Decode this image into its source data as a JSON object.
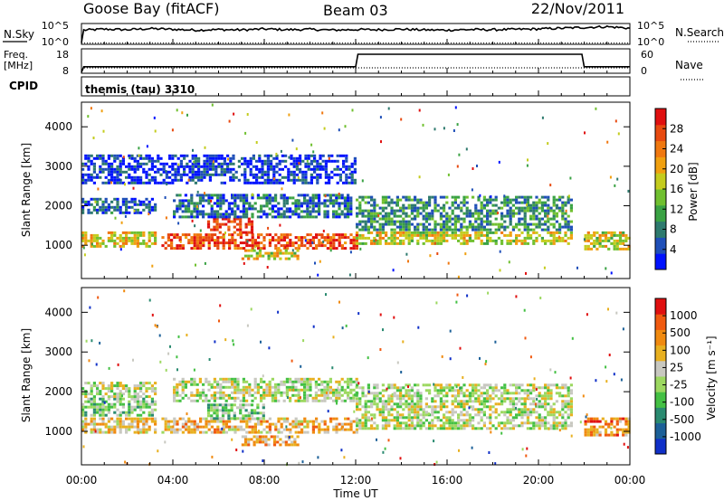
{
  "header": {
    "station": "Goose Bay (fitACF)",
    "beam": "Beam 03",
    "date": "22/Nov/2011"
  },
  "chart_data": [
    {
      "panel": "noise",
      "type": "line",
      "left_label": "N.Sky",
      "left_ticks": [
        "10^5",
        "10^0"
      ],
      "right_label": "N.Search",
      "right_ticks": [
        "10^5",
        "10^0"
      ],
      "series": [
        {
          "style": "solid",
          "x_hours": [
            0,
            0.1,
            1,
            2,
            3,
            4,
            5,
            6,
            7,
            8,
            9,
            10,
            11,
            12,
            13,
            14,
            15,
            16,
            17,
            18,
            19,
            20,
            21,
            22,
            23,
            24
          ],
          "level": [
            0.05,
            0.7,
            0.75,
            0.72,
            0.78,
            0.74,
            0.7,
            0.73,
            0.71,
            0.76,
            0.72,
            0.74,
            0.7,
            0.73,
            0.72,
            0.75,
            0.71,
            0.7,
            0.73,
            0.72,
            0.74,
            0.76,
            0.8,
            0.84,
            0.88,
            0.8
          ]
        },
        {
          "style": "dotted",
          "x_hours": [
            0,
            24
          ],
          "level": [
            0.02,
            0.02
          ]
        }
      ]
    },
    {
      "panel": "frequency",
      "type": "line",
      "left_label": "Freq.",
      "left_units": "[MHz]",
      "left_ticks": [
        "18",
        "8"
      ],
      "ylim": [
        8,
        18
      ],
      "right_label": "Nave",
      "right_ticks": [
        "60",
        "0"
      ],
      "y2lim": [
        0,
        60
      ],
      "series": [
        {
          "style": "solid",
          "x_hours": [
            0,
            0.1,
            12,
            12.1,
            21.9,
            22,
            24
          ],
          "values": [
            8,
            10.5,
            10.5,
            16,
            16,
            10.5,
            10.5
          ]
        },
        {
          "style": "dotted",
          "x_hours": [
            0,
            0.1,
            24
          ],
          "values": [
            0,
            12,
            12
          ]
        }
      ]
    },
    {
      "panel": "cpid",
      "type": "table",
      "label": "CPID",
      "text": "themis (tau) 3310"
    },
    {
      "panel": "power",
      "type": "heatmap",
      "ylabel": "Slant Range [km]",
      "yticks": [
        1000,
        2000,
        3000,
        4000
      ],
      "ylim": [
        180,
        4600
      ],
      "colorbar_label": "Power [dB]",
      "colorbar_ticks": [
        4,
        8,
        12,
        16,
        20,
        24,
        28
      ],
      "colorbar_colors": [
        "#0012ff",
        "#1f4fb8",
        "#2e7a6e",
        "#3aa244",
        "#70c030",
        "#c4cc1e",
        "#f0a010",
        "#f07810",
        "#e84a10",
        "#e01010"
      ],
      "regions": [
        {
          "x": [
            0,
            3.2
          ],
          "range": [
            1000,
            1350
          ],
          "level": 0.6
        },
        {
          "x": [
            0,
            3.2
          ],
          "range": [
            1850,
            2200
          ],
          "level": 0.15
        },
        {
          "x": [
            3.5,
            12
          ],
          "range": [
            950,
            1300
          ],
          "level": 0.85
        },
        {
          "x": [
            5.5,
            7.5
          ],
          "range": [
            1300,
            1700
          ],
          "level": 0.9
        },
        {
          "x": [
            7,
            9.5
          ],
          "range": [
            650,
            900
          ],
          "level": 0.55
        },
        {
          "x": [
            4,
            11.8
          ],
          "range": [
            1750,
            2300
          ],
          "level": 0.2
        },
        {
          "x": [
            12,
            21.5
          ],
          "range": [
            1050,
            1350
          ],
          "level": 0.55
        },
        {
          "x": [
            12,
            21.5
          ],
          "range": [
            1400,
            2250
          ],
          "level": 0.3
        },
        {
          "x": [
            22,
            24
          ],
          "range": [
            900,
            1350
          ],
          "level": 0.55
        },
        {
          "x": [
            0,
            12
          ],
          "range": [
            2600,
            3300
          ],
          "level": 0.1
        }
      ]
    },
    {
      "panel": "velocity",
      "type": "heatmap",
      "ylabel": "Slant Range [km]",
      "yticks": [
        1000,
        2000,
        3000,
        4000
      ],
      "ylim": [
        180,
        4600
      ],
      "colorbar_label": "Velocity [m s⁻¹]",
      "colorbar_ticks": [
        "1000",
        "500",
        "100",
        "25",
        "-25",
        "-100",
        "-500",
        "-1000"
      ],
      "colorbar_colors": [
        "#1030c8",
        "#1c6098",
        "#2a8a70",
        "#44c044",
        "#9cd860",
        "#c8c8c0",
        "#e8b020",
        "#f08a10",
        "#f05a10",
        "#e01010"
      ],
      "regions": [
        {
          "x": [
            0,
            3.2
          ],
          "range": [
            950,
            1350
          ],
          "level": 0.62
        },
        {
          "x": [
            0,
            3.2
          ],
          "range": [
            1400,
            1850
          ],
          "level": 0.4
        },
        {
          "x": [
            0,
            3.2
          ],
          "range": [
            1850,
            2250
          ],
          "level": 0.5
        },
        {
          "x": [
            3.5,
            12
          ],
          "range": [
            950,
            1350
          ],
          "level": 0.66
        },
        {
          "x": [
            5.5,
            8
          ],
          "range": [
            1350,
            1700
          ],
          "level": 0.42
        },
        {
          "x": [
            7,
            9.5
          ],
          "range": [
            650,
            900
          ],
          "level": 0.68
        },
        {
          "x": [
            4,
            12
          ],
          "range": [
            1750,
            2350
          ],
          "level": 0.5
        },
        {
          "x": [
            12,
            21.5
          ],
          "range": [
            1050,
            2200
          ],
          "level": 0.5
        },
        {
          "x": [
            22,
            24
          ],
          "range": [
            900,
            1350
          ],
          "level": 0.75
        }
      ]
    }
  ],
  "xaxis": {
    "label": "Time UT",
    "ticks": [
      "00:00",
      "04:00",
      "08:00",
      "12:00",
      "16:00",
      "20:00",
      "00:00"
    ],
    "range_hours": [
      0,
      24
    ]
  }
}
